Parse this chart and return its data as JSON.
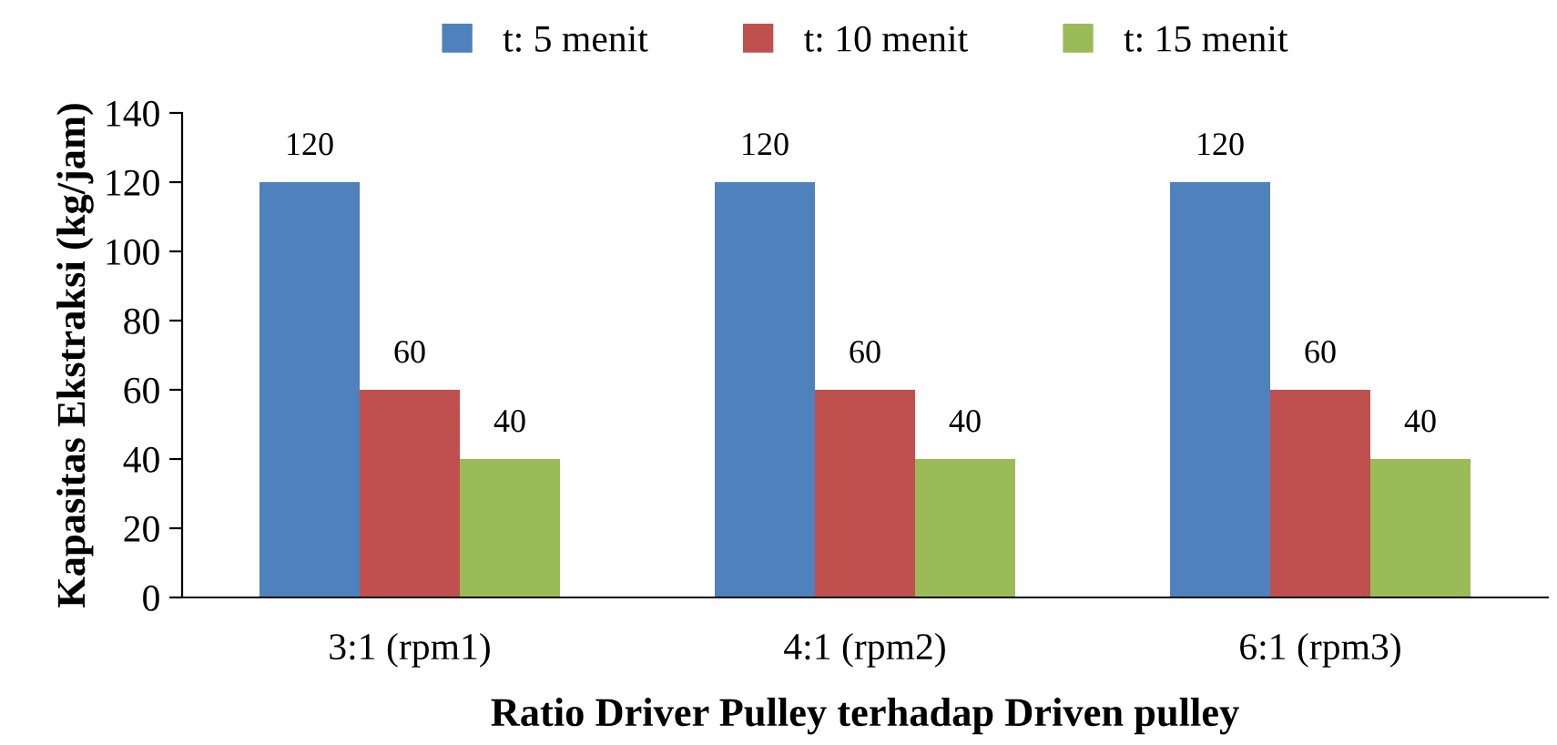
{
  "chart_data": {
    "type": "bar",
    "xlabel": "Ratio Driver Pulley terhadap Driven pulley",
    "ylabel": "Kapasitas Ekstraksi (kg/jam)",
    "categories": [
      "3:1 (rpm1)",
      "4:1 (rpm2)",
      "6:1 (rpm3)"
    ],
    "series": [
      {
        "name": "t: 5 menit",
        "color": "#4f81bd",
        "values": [
          120,
          120,
          120
        ]
      },
      {
        "name": "t: 10 menit",
        "color": "#c0504d",
        "values": [
          60,
          60,
          60
        ]
      },
      {
        "name": "t: 15 menit",
        "color": "#9bbb59",
        "values": [
          40,
          40,
          40
        ]
      }
    ],
    "ylim": [
      0,
      140
    ],
    "yticks": [
      0,
      20,
      40,
      60,
      80,
      100,
      120,
      140
    ],
    "grid": false,
    "legend": "top",
    "data_labels": true
  }
}
